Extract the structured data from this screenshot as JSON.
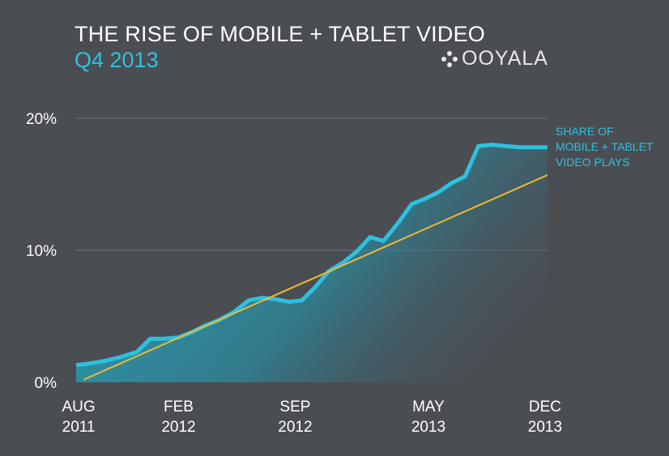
{
  "header": {
    "title": "THE RISE OF MOBILE + TABLET VIDEO",
    "subtitle": "Q4 2013"
  },
  "logo": {
    "text": "OOYALA",
    "icon": "ooyala-dots-icon",
    "color": "#e8e8e8"
  },
  "colors": {
    "background": "#4a4d52",
    "series": "#2ec0e0",
    "trend": "#f2b731",
    "grid": "#6e7176"
  },
  "chart_data": {
    "type": "area",
    "title": "THE RISE OF MOBILE + TABLET VIDEO",
    "subtitle": "Q4 2013",
    "xlabel": "",
    "ylabel": "",
    "ylim": [
      0,
      20
    ],
    "y_ticks": [
      {
        "value": 0,
        "label": "0%"
      },
      {
        "value": 10,
        "label": "10%"
      },
      {
        "value": 20,
        "label": "20%"
      }
    ],
    "x_ticks": [
      {
        "month": 0,
        "month_label": "AUG",
        "year_label": "2011"
      },
      {
        "month": 6,
        "month_label": "FEB",
        "year_label": "2012"
      },
      {
        "month": 13,
        "month_label": "SEP",
        "year_label": "2012"
      },
      {
        "month": 21,
        "month_label": "MAY",
        "year_label": "2013"
      },
      {
        "month": 28,
        "month_label": "DEC",
        "year_label": "2013"
      }
    ],
    "x_range": [
      -0.15,
      28.15
    ],
    "grid": true,
    "series": [
      {
        "name": "SHARE OF\nMOBILE + TABLET\nVIDEO PLAYS",
        "x": [
          -0.15,
          0.5,
          1.5,
          2.5,
          3.5,
          4.3,
          5.1,
          6.0,
          6.8,
          7.6,
          8.4,
          9.3,
          10.2,
          11.0,
          11.8,
          12.6,
          13.4,
          14.2,
          15.0,
          15.9,
          16.7,
          17.5,
          18.3,
          19.2,
          20.0,
          20.8,
          21.6,
          22.4,
          23.2,
          24.0,
          24.8,
          25.6,
          26.5,
          27.3,
          28.15
        ],
        "values": [
          1.3,
          1.4,
          1.6,
          1.9,
          2.3,
          3.3,
          3.3,
          3.4,
          3.8,
          4.3,
          4.7,
          5.3,
          6.2,
          6.4,
          6.3,
          6.1,
          6.2,
          7.2,
          8.4,
          9.1,
          9.9,
          11.0,
          10.7,
          12.1,
          13.5,
          13.9,
          14.4,
          15.1,
          15.6,
          17.9,
          18.0,
          17.9,
          17.8,
          17.8,
          17.8
        ]
      }
    ],
    "trend_line": {
      "x": [
        0.3,
        28.15
      ],
      "values": [
        0.2,
        15.7
      ]
    }
  }
}
